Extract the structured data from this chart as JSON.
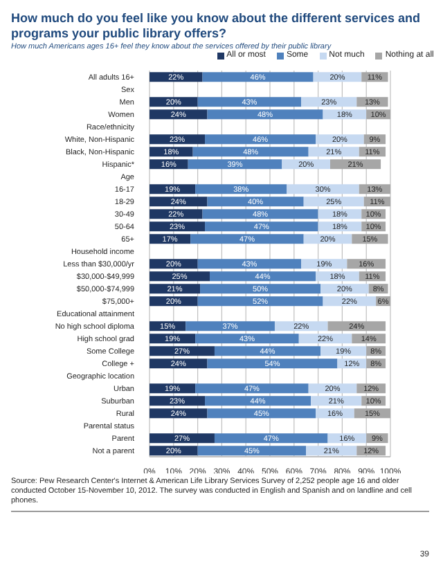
{
  "chart_data": {
    "type": "bar",
    "orientation": "horizontal",
    "stacked": true,
    "title": "How much do you feel like you know about the different services and programs your public library offers?",
    "subtitle": "How much Americans ages 16+ feel they know about the services offered by their public library",
    "categories": [
      "All adults 16+",
      "Sex",
      "Men",
      "Women",
      "Race/ethnicity",
      "White, Non-Hispanic",
      "Black, Non-Hispanic",
      "Hispanic*",
      "Age",
      "16-17",
      "18-29",
      "30-49",
      "50-64",
      "65+",
      "Household income",
      "Less than $30,000/yr",
      "$30,000-$49,999",
      "$50,000-$74,999",
      "$75,000+",
      "Educational attainment",
      "No high school diploma",
      "High school grad",
      "Some College",
      "College +",
      "Geographic location",
      "Urban",
      "Suburban",
      "Rural",
      "Parental status",
      "Parent",
      "Not a parent"
    ],
    "series": [
      {
        "name": "All or most",
        "color": "#1f3864",
        "values": [
          22,
          null,
          20,
          24,
          null,
          23,
          18,
          16,
          null,
          19,
          24,
          22,
          23,
          17,
          null,
          20,
          25,
          21,
          20,
          null,
          15,
          19,
          27,
          24,
          null,
          19,
          23,
          24,
          null,
          27,
          20
        ],
        "value_labels": [
          "22%",
          null,
          "20%",
          "24%",
          null,
          "23%",
          "18%",
          "16%",
          null,
          "19%",
          "24%",
          "22%",
          "23%",
          "17%",
          null,
          "20%",
          "25%",
          "21%",
          "20%",
          null,
          "15%",
          "19%",
          "27%",
          "24%",
          null,
          "19%",
          "23%",
          "24%",
          null,
          "27%",
          "20%"
        ]
      },
      {
        "name": "Some",
        "color": "#4f81bd",
        "values": [
          46,
          null,
          43,
          48,
          null,
          46,
          48,
          39,
          null,
          38,
          40,
          48,
          47,
          47,
          null,
          43,
          44,
          50,
          52,
          null,
          37,
          43,
          44,
          54,
          null,
          47,
          44,
          45,
          null,
          47,
          45
        ],
        "value_labels": [
          "46%",
          null,
          "43%",
          "48%",
          null,
          "46%",
          "48%",
          "39%",
          null,
          "38%",
          "40%",
          "48%",
          "47%",
          "47%",
          null,
          "43%",
          "44%",
          "50%",
          "52%",
          null,
          "37%",
          "43%",
          "44%",
          "54%",
          null,
          "47%",
          "44%",
          "45%",
          null,
          "47%",
          "45%"
        ]
      },
      {
        "name": "Not much",
        "color": "#c6d9f1",
        "values": [
          20,
          null,
          23,
          18,
          null,
          20,
          21,
          20,
          null,
          30,
          25,
          18,
          18,
          20,
          null,
          19,
          18,
          20,
          22,
          null,
          22,
          22,
          19,
          12,
          null,
          20,
          21,
          16,
          null,
          16,
          21
        ],
        "value_labels": [
          "20%",
          null,
          "23%",
          "18%",
          null,
          "20%",
          "21%",
          "20%",
          null,
          "30%",
          "25%",
          "18%",
          "18%",
          "20%",
          null,
          "19%",
          "18%",
          "20%",
          "22%",
          null,
          "22%",
          "22%",
          "19%",
          "12%",
          null,
          "20%",
          "21%",
          "16%",
          null,
          "16%",
          "21%"
        ]
      },
      {
        "name": "Nothing at all",
        "color": "#a6a6a6",
        "values": [
          11,
          null,
          13,
          10,
          null,
          9,
          11,
          21,
          null,
          13,
          11,
          10,
          10,
          15,
          null,
          16,
          11,
          8,
          6,
          null,
          24,
          14,
          8,
          8,
          null,
          12,
          10,
          15,
          null,
          9,
          12
        ],
        "value_labels": [
          "11%",
          null,
          "13%",
          "10%",
          null,
          "9%",
          "11%",
          "21%",
          null,
          "13%",
          "11%",
          "10%",
          "10%",
          "15%",
          null,
          "16%",
          "11%",
          "8%",
          "6%",
          null,
          "24%",
          "14%",
          "8%",
          "8%",
          null,
          "12%",
          "10%",
          "15%",
          null,
          "9%",
          "12%"
        ]
      }
    ],
    "xlim": [
      0,
      100
    ],
    "xticks": [
      {
        "value": 0,
        "label": "0%"
      },
      {
        "value": 10,
        "label": "10%"
      },
      {
        "value": 20,
        "label": "20%"
      },
      {
        "value": 30,
        "label": "30%"
      },
      {
        "value": 40,
        "label": "40%"
      },
      {
        "value": 50,
        "label": "50%"
      },
      {
        "value": 60,
        "label": "60%"
      },
      {
        "value": 70,
        "label": "70%"
      },
      {
        "value": 80,
        "label": "80%"
      },
      {
        "value": 90,
        "label": "90%"
      },
      {
        "value": 100,
        "label": "100%"
      }
    ],
    "grid": "x",
    "legend": "top",
    "annotations": [
      "Source: Pew Research Center's Internet & American Life Library Services Survey of 2,252 people age 16 and older conducted October 15-November 10, 2012. The survey was conducted in English and Spanish and on landline and cell phones.",
      "39"
    ]
  }
}
